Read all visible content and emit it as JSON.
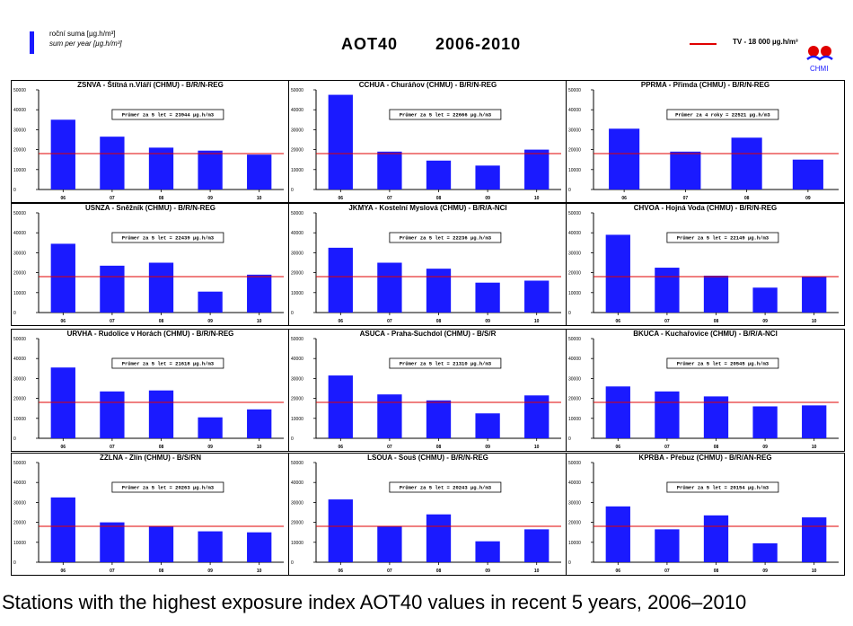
{
  "legend": {
    "line1": "roční suma [µg.h/m³]",
    "line2": "sum per year [µg.h/m³]",
    "bar_color": "#1a1aff",
    "tv_label": "TV - 18 000 µg.h/m³",
    "tv_color": "#e00000"
  },
  "title": {
    "left": "AOT40",
    "right": "2006-2010"
  },
  "logo": {
    "text": "CHMI"
  },
  "caption": "Stations with the highest exposure index AOT40 values in recent 5 years, 2006–2010",
  "chart_data": [
    {
      "type": "bar",
      "title": "ZSNVA - Štítná n.Vláří (CHMU) - B/R/N-REG",
      "note": "Průmer za 5 let = 23944 µg.h/m3",
      "categories": [
        "06",
        "07",
        "08",
        "09",
        "10"
      ],
      "values": [
        35000,
        26500,
        21000,
        19500,
        17500
      ],
      "ylim": [
        0,
        50000
      ],
      "yticks": [
        0,
        10000,
        20000,
        30000,
        40000,
        50000
      ],
      "threshold": 18000
    },
    {
      "type": "bar",
      "title": "CCHUA - Churáňov (CHMU) - B/R/N-REG",
      "note": "Průmer za 5 let = 22666 µg.h/m3",
      "categories": [
        "06",
        "07",
        "08",
        "09",
        "10"
      ],
      "values": [
        47500,
        19000,
        14500,
        12000,
        20000
      ],
      "ylim": [
        0,
        50000
      ],
      "yticks": [
        0,
        10000,
        20000,
        30000,
        40000,
        50000
      ],
      "threshold": 18000
    },
    {
      "type": "bar",
      "title": "PPRMA - Přimda (CHMU) - B/R/N-REG",
      "note": "Průmer za 4 roky = 22521 µg.h/m3",
      "categories": [
        "06",
        "07",
        "08",
        "09"
      ],
      "values": [
        30500,
        19000,
        26000,
        15000
      ],
      "ylim": [
        0,
        50000
      ],
      "yticks": [
        0,
        10000,
        20000,
        30000,
        40000,
        50000
      ],
      "threshold": 18000
    },
    {
      "type": "bar",
      "title": "USNZA - Sněžník (CHMU) - B/R/N-REG",
      "note": "Průmer za 5 let = 22439 µg.h/m3",
      "categories": [
        "06",
        "07",
        "08",
        "09",
        "10"
      ],
      "values": [
        34500,
        23500,
        25000,
        10500,
        19000
      ],
      "ylim": [
        0,
        50000
      ],
      "yticks": [
        0,
        10000,
        20000,
        30000,
        40000,
        50000
      ],
      "threshold": 18000
    },
    {
      "type": "bar",
      "title": "JKMYA - Kostelní Myslová (CHMU) - B/R/A-NCI",
      "note": "Průmer za 5 let = 22236 µg.h/m3",
      "categories": [
        "06",
        "07",
        "08",
        "09",
        "10"
      ],
      "values": [
        32500,
        25000,
        22000,
        15000,
        16000
      ],
      "ylim": [
        0,
        50000
      ],
      "yticks": [
        0,
        10000,
        20000,
        30000,
        40000,
        50000
      ],
      "threshold": 18000
    },
    {
      "type": "bar",
      "title": "CHVOA - Hojná Voda (CHMU) - B/R/N-REG",
      "note": "Průmer za 5 let = 22149 µg.h/m3",
      "categories": [
        "06",
        "07",
        "08",
        "09",
        "10"
      ],
      "values": [
        39000,
        22500,
        18500,
        12500,
        18000
      ],
      "ylim": [
        0,
        50000
      ],
      "yticks": [
        0,
        10000,
        20000,
        30000,
        40000,
        50000
      ],
      "threshold": 18000
    },
    {
      "type": "bar",
      "title": "URVHA - Rudolice v Horách (CHMU) - B/R/N-REG",
      "note": "Průmer za 5 let = 21618 µg.h/m3",
      "categories": [
        "06",
        "07",
        "08",
        "09",
        "10"
      ],
      "values": [
        35500,
        23500,
        24000,
        10500,
        14500
      ],
      "ylim": [
        0,
        50000
      ],
      "yticks": [
        0,
        10000,
        20000,
        30000,
        40000,
        50000
      ],
      "threshold": 18000
    },
    {
      "type": "bar",
      "title": "ASUCA - Praha-Suchdol (CHMU) - B/S/R",
      "note": "Průmer za 5 let = 21310 µg.h/m3",
      "categories": [
        "06",
        "07",
        "08",
        "09",
        "10"
      ],
      "values": [
        31500,
        22000,
        19000,
        12500,
        21500
      ],
      "ylim": [
        0,
        50000
      ],
      "yticks": [
        0,
        10000,
        20000,
        30000,
        40000,
        50000
      ],
      "threshold": 18000
    },
    {
      "type": "bar",
      "title": "BKUCA - Kuchařovice (CHMU) - B/R/A-NCI",
      "note": "Průmer za 5 let = 20545 µg.h/m3",
      "categories": [
        "06",
        "07",
        "08",
        "09",
        "10"
      ],
      "values": [
        26000,
        23500,
        21000,
        16000,
        16500
      ],
      "ylim": [
        0,
        50000
      ],
      "yticks": [
        0,
        10000,
        20000,
        30000,
        40000,
        50000
      ],
      "threshold": 18000
    },
    {
      "type": "bar",
      "title": "ZZLNA - Zlín (CHMU) - B/S/RN",
      "note": "Průmer za 5 let = 20263 µg.h/m3",
      "categories": [
        "06",
        "07",
        "08",
        "09",
        "10"
      ],
      "values": [
        32500,
        20000,
        18000,
        15500,
        15000
      ],
      "ylim": [
        0,
        50000
      ],
      "yticks": [
        0,
        10000,
        20000,
        30000,
        40000,
        50000
      ],
      "threshold": 18000
    },
    {
      "type": "bar",
      "title": "LSOUA - Souš (CHMU) - B/R/N-REG",
      "note": "Průmer za 5 let = 20243 µg.h/m3",
      "categories": [
        "06",
        "07",
        "08",
        "09",
        "10"
      ],
      "values": [
        31500,
        18000,
        24000,
        10500,
        16500
      ],
      "ylim": [
        0,
        50000
      ],
      "yticks": [
        0,
        10000,
        20000,
        30000,
        40000,
        50000
      ],
      "threshold": 18000
    },
    {
      "type": "bar",
      "title": "KPRBA - Přebuz (CHMU) - B/R/AN-REG",
      "note": "Průmer za 5 let = 20154 µg.h/m3",
      "categories": [
        "06",
        "07",
        "08",
        "09",
        "10"
      ],
      "values": [
        28000,
        16500,
        23500,
        9500,
        22500
      ],
      "ylim": [
        0,
        50000
      ],
      "yticks": [
        0,
        10000,
        20000,
        30000,
        40000,
        50000
      ],
      "threshold": 18000
    }
  ]
}
